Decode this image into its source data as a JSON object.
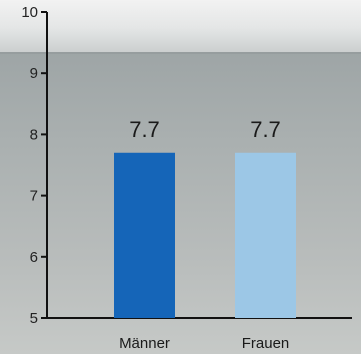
{
  "chart_data": {
    "type": "bar",
    "title": "",
    "xlabel": "",
    "ylabel": "",
    "categories": [
      "Männer",
      "Frauen"
    ],
    "values": [
      7.7,
      7.7
    ],
    "value_labels": [
      "7.7",
      "7.7"
    ],
    "ylim": [
      5,
      10
    ],
    "yticks": [
      5,
      6,
      7,
      8,
      9,
      10
    ],
    "ytick_labels": [
      "5",
      "6",
      "7",
      "8",
      "9",
      "10"
    ],
    "grid": false,
    "bar_colors": [
      "#1565b8",
      "#9cc7e6"
    ],
    "background": "sea-horizon photo (grey sky over grey sea)"
  }
}
